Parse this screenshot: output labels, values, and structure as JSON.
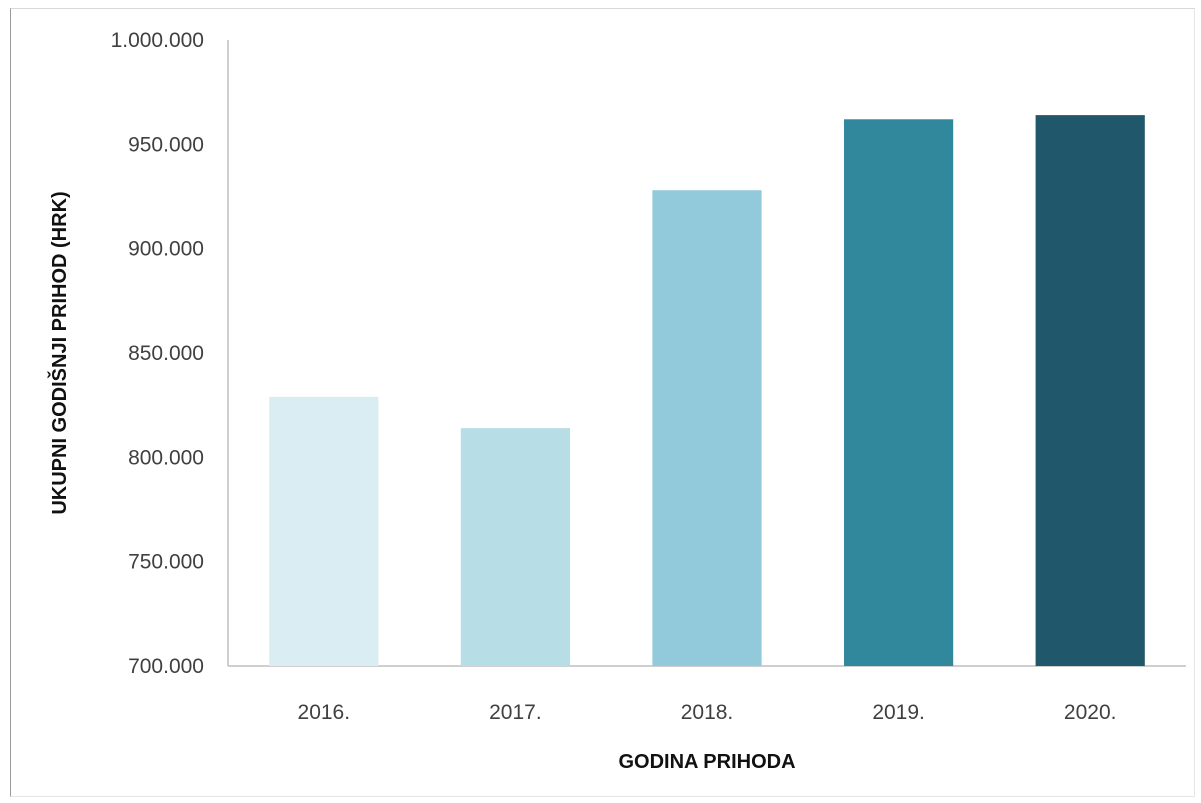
{
  "chart_data": {
    "type": "bar",
    "categories": [
      "2016.",
      "2017.",
      "2018.",
      "2019.",
      "2020."
    ],
    "values": [
      829000,
      814000,
      928000,
      962000,
      964000
    ],
    "colors": [
      "#daedf2",
      "#b7dde7",
      "#92cadb",
      "#31879c",
      "#20576a"
    ],
    "title": "",
    "xlabel": "GODINA PRIHODA",
    "ylabel": "UKUPNI GODIŠNJI PRIHOD (HRK)",
    "ylim": [
      700000,
      1000000
    ],
    "yticks": [
      700000,
      750000,
      800000,
      850000,
      900000,
      950000,
      1000000
    ],
    "ytick_labels": [
      "700.000",
      "750.000",
      "800.000",
      "850.000",
      "900.000",
      "950.000",
      "1.000.000"
    ],
    "grid": false,
    "legend": "none"
  }
}
